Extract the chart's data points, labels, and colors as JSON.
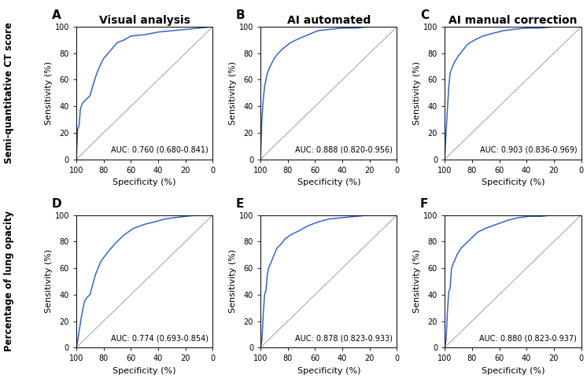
{
  "col_titles": [
    "Visual analysis",
    "AI automated",
    "AI manual correction"
  ],
  "row_labels": [
    "Semi-quantitative CT score",
    "Percentage of lung opacity"
  ],
  "panel_labels": [
    "A",
    "B",
    "C",
    "D",
    "E",
    "F"
  ],
  "auc_texts": [
    "AUC: 0.760 (0.680-0.841)",
    "AUC: 0.888 (0.820-0.956)",
    "AUC: 0.903 (0.836-0.969)",
    "AUC: 0.774 (0.693-0.854)",
    "AUC: 0.878 (0.823-0.933)",
    "AUC: 0.880 (0.823-0.937)"
  ],
  "roc_curves": {
    "A": {
      "fpr": [
        0,
        0.01,
        0.02,
        0.03,
        0.04,
        0.05,
        0.06,
        0.08,
        0.1,
        0.12,
        0.15,
        0.18,
        0.2,
        0.25,
        0.3,
        0.35,
        0.4,
        0.5,
        0.6,
        0.7,
        0.8,
        0.9,
        1.0
      ],
      "tpr": [
        0,
        0.23,
        0.25,
        0.38,
        0.41,
        0.43,
        0.44,
        0.46,
        0.48,
        0.55,
        0.65,
        0.72,
        0.76,
        0.82,
        0.88,
        0.9,
        0.93,
        0.94,
        0.96,
        0.97,
        0.98,
        0.99,
        1.0
      ]
    },
    "B": {
      "fpr": [
        0,
        0.01,
        0.02,
        0.03,
        0.05,
        0.07,
        0.1,
        0.13,
        0.17,
        0.22,
        0.28,
        0.35,
        0.42,
        0.5,
        0.6,
        0.7,
        0.8,
        0.9,
        1.0
      ],
      "tpr": [
        0,
        0.3,
        0.45,
        0.55,
        0.65,
        0.7,
        0.76,
        0.8,
        0.84,
        0.88,
        0.91,
        0.94,
        0.97,
        0.98,
        0.99,
        0.99,
        1.0,
        1.0,
        1.0
      ]
    },
    "C": {
      "fpr": [
        0,
        0.01,
        0.02,
        0.03,
        0.04,
        0.05,
        0.07,
        0.1,
        0.13,
        0.17,
        0.22,
        0.28,
        0.35,
        0.43,
        0.5,
        0.6,
        0.7,
        0.8,
        0.9,
        1.0
      ],
      "tpr": [
        0,
        0.2,
        0.38,
        0.55,
        0.65,
        0.68,
        0.73,
        0.78,
        0.82,
        0.87,
        0.9,
        0.93,
        0.95,
        0.97,
        0.98,
        0.99,
        0.99,
        1.0,
        1.0,
        1.0
      ]
    },
    "D": {
      "fpr": [
        0,
        0.01,
        0.02,
        0.04,
        0.06,
        0.08,
        0.1,
        0.14,
        0.18,
        0.23,
        0.28,
        0.35,
        0.42,
        0.5,
        0.58,
        0.65,
        0.72,
        0.8,
        0.9,
        1.0
      ],
      "tpr": [
        0,
        0.05,
        0.12,
        0.25,
        0.35,
        0.38,
        0.4,
        0.55,
        0.65,
        0.72,
        0.78,
        0.85,
        0.9,
        0.93,
        0.95,
        0.97,
        0.98,
        0.99,
        1.0,
        1.0
      ]
    },
    "E": {
      "fpr": [
        0,
        0.01,
        0.02,
        0.03,
        0.04,
        0.05,
        0.06,
        0.08,
        0.1,
        0.12,
        0.15,
        0.18,
        0.22,
        0.28,
        0.35,
        0.43,
        0.5,
        0.6,
        0.7,
        0.8,
        0.9,
        1.0
      ],
      "tpr": [
        0,
        0.05,
        0.25,
        0.4,
        0.43,
        0.55,
        0.6,
        0.65,
        0.7,
        0.75,
        0.78,
        0.82,
        0.85,
        0.88,
        0.92,
        0.95,
        0.97,
        0.98,
        0.99,
        1.0,
        1.0,
        1.0
      ]
    },
    "F": {
      "fpr": [
        0,
        0.01,
        0.02,
        0.03,
        0.04,
        0.05,
        0.07,
        0.09,
        0.12,
        0.15,
        0.19,
        0.24,
        0.3,
        0.38,
        0.46,
        0.54,
        0.62,
        0.7,
        0.8,
        0.9,
        1.0
      ],
      "tpr": [
        0,
        0.05,
        0.27,
        0.42,
        0.45,
        0.6,
        0.65,
        0.7,
        0.75,
        0.78,
        0.82,
        0.87,
        0.9,
        0.93,
        0.96,
        0.98,
        0.99,
        0.99,
        1.0,
        1.0,
        1.0
      ]
    }
  },
  "line_color": "#3366CC",
  "diag_color": "#AAAAAA",
  "background_color": "#FFFFFF",
  "text_color": "#000000",
  "xlabel": "Specificity (%)",
  "ylabel": "Sensitivity (%)",
  "axis_fontsize": 7,
  "label_fontsize": 8,
  "title_fontsize": 10,
  "panel_label_fontsize": 11,
  "auc_fontsize": 7,
  "row_label_fontsize": 8.5
}
